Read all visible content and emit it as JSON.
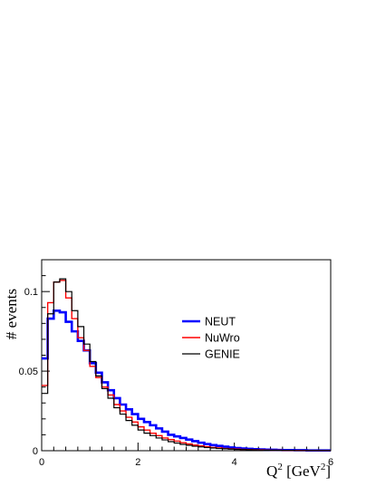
{
  "chart_data": {
    "type": "line",
    "title": "",
    "xlabel": "Q² [GeV²]",
    "ylabel": "# events",
    "xlim": [
      0,
      6
    ],
    "ylim": [
      0,
      0.12
    ],
    "xticks": [
      "0",
      "2",
      "4",
      "6"
    ],
    "yticks": [
      "0",
      "0.05",
      "0.1"
    ],
    "bin_width": 0.125,
    "legend_position": "right-center",
    "series": [
      {
        "name": "NEUT",
        "color": "#0000ff",
        "values": [
          0.058,
          0.083,
          0.088,
          0.087,
          0.081,
          0.075,
          0.069,
          0.063,
          0.055,
          0.049,
          0.043,
          0.038,
          0.033,
          0.029,
          0.026,
          0.023,
          0.02,
          0.018,
          0.016,
          0.014,
          0.012,
          0.01,
          0.009,
          0.008,
          0.007,
          0.006,
          0.005,
          0.0042,
          0.0035,
          0.003,
          0.0025,
          0.002,
          0.0017,
          0.0014,
          0.0012,
          0.001,
          0.0008,
          0.0007,
          0.0006,
          0.0005,
          0.0004,
          0.0004,
          0.0003,
          0.0003,
          0.0002,
          0.0002,
          0.0002,
          0.0002
        ]
      },
      {
        "name": "NuWro",
        "color": "#ff0000",
        "values": [
          0.041,
          0.093,
          0.106,
          0.107,
          0.096,
          0.083,
          0.071,
          0.063,
          0.053,
          0.046,
          0.04,
          0.035,
          0.029,
          0.025,
          0.021,
          0.018,
          0.015,
          0.013,
          0.011,
          0.0095,
          0.008,
          0.007,
          0.006,
          0.005,
          0.0042,
          0.0035,
          0.003,
          0.0025,
          0.002,
          0.0017,
          0.0014,
          0.0012,
          0.001,
          0.0008,
          0.0007,
          0.0006,
          0.0005,
          0.0004,
          0.0003,
          0.0003,
          0.0002,
          0.0002,
          0.0002,
          0.0001,
          0.0001,
          0.0001,
          0.0001,
          0.0001
        ]
      },
      {
        "name": "GENIE",
        "color": "#000000",
        "values": [
          0.036,
          0.086,
          0.106,
          0.108,
          0.1,
          0.088,
          0.078,
          0.067,
          0.056,
          0.047,
          0.039,
          0.033,
          0.027,
          0.023,
          0.019,
          0.016,
          0.013,
          0.011,
          0.0095,
          0.008,
          0.0068,
          0.0057,
          0.0048,
          0.004,
          0.0034,
          0.0028,
          0.0024,
          0.002,
          0.0017,
          0.0014,
          0.0012,
          0.001,
          0.0008,
          0.0007,
          0.0006,
          0.0005,
          0.0004,
          0.0003,
          0.0003,
          0.0002,
          0.0002,
          0.0002,
          0.0001,
          0.0001,
          0.0001,
          0.0001,
          0.0001,
          0.0001
        ]
      }
    ]
  }
}
